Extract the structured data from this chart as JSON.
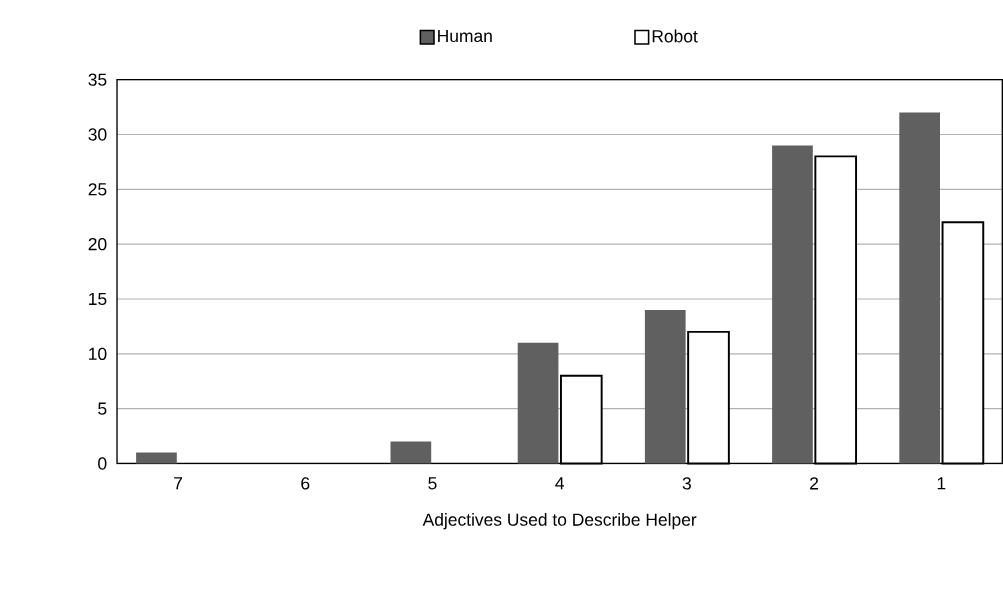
{
  "chart_data": {
    "type": "bar",
    "xlabel": "Adjectives Used to Describe Helper",
    "categories": [
      "7",
      "6",
      "5",
      "4",
      "3",
      "2",
      "1"
    ],
    "series": [
      {
        "name": "Human",
        "color": "#606060",
        "values": [
          1,
          0,
          2,
          11,
          14,
          29,
          32
        ]
      },
      {
        "name": "Robot",
        "color": "#ffffff",
        "values": [
          0,
          0,
          0,
          8,
          12,
          28,
          22
        ]
      }
    ],
    "ylim": [
      0,
      35
    ],
    "yticks": [
      0,
      5,
      10,
      15,
      20,
      25,
      30,
      35
    ],
    "grid": "y",
    "legend": "top"
  }
}
